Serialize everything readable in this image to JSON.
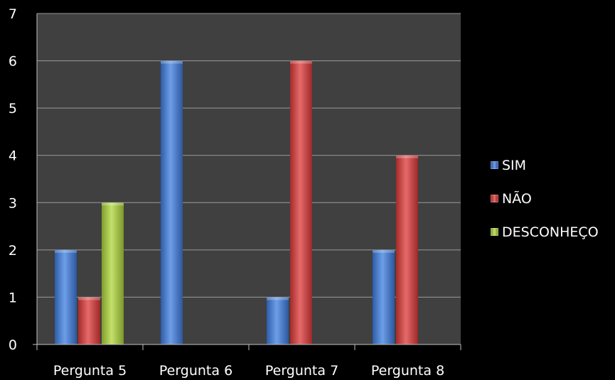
{
  "chart_data": {
    "type": "bar",
    "categories": [
      "Pergunta 5",
      "Pergunta 6",
      "Pergunta 7",
      "Pergunta 8"
    ],
    "series": [
      {
        "name": "SIM",
        "values": [
          2,
          6,
          1,
          2
        ],
        "color": "#4a7fd0"
      },
      {
        "name": "NÃO",
        "values": [
          1,
          0,
          6,
          4
        ],
        "color": "#cf4343"
      },
      {
        "name": "DESCONHEÇO",
        "values": [
          3,
          0,
          0,
          0
        ],
        "color": "#a6c74a"
      }
    ],
    "ylim": [
      0,
      7
    ],
    "yticks": [
      "0",
      "1",
      "2",
      "3",
      "4",
      "5",
      "6",
      "7"
    ],
    "grid": true,
    "legend_position": "right",
    "background": "#000000",
    "plot_background": "#404040"
  }
}
